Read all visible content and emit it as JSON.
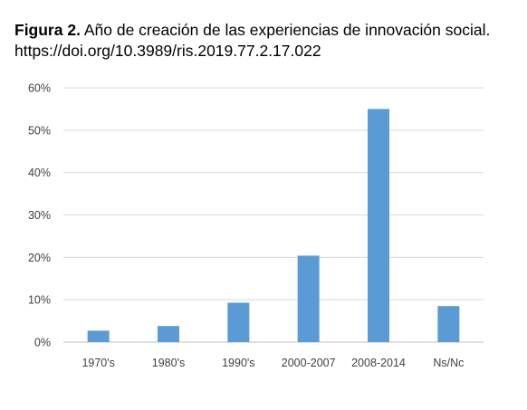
{
  "caption": {
    "label": "Figura 2.",
    "text": "Año de creación de las experiencias de innovación social.",
    "doi": "https://doi.org/10.3989/ris.2019.77.2.17.022"
  },
  "chart_data": {
    "type": "bar",
    "categories": [
      "1970's",
      "1980's",
      "1990's",
      "2000-2007",
      "2008-2014",
      "Ns/Nc"
    ],
    "values": [
      2.7,
      3.8,
      9.3,
      20.4,
      55.0,
      8.5
    ],
    "unit": "%",
    "ylim": [
      0,
      60
    ],
    "yticks": [
      0,
      10,
      20,
      30,
      40,
      50,
      60
    ],
    "ytick_labels": [
      "0%",
      "10%",
      "20%",
      "30%",
      "40%",
      "50%",
      "60%"
    ],
    "grid": true,
    "bar_color": "#5b9bd5",
    "legend": "none"
  }
}
